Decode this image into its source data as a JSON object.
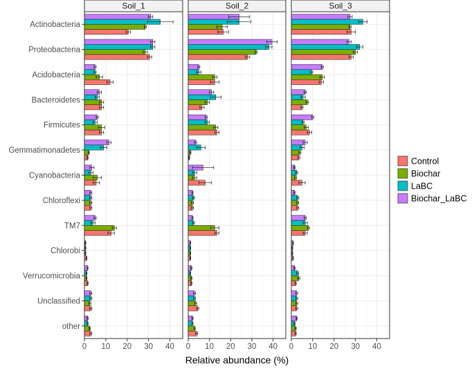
{
  "chart_data": {
    "type": "bar",
    "orientation": "horizontal",
    "xlabel": "Relative abundance (%)",
    "xlim": [
      0,
      46
    ],
    "xticks": [
      0,
      10,
      20,
      30,
      40
    ],
    "tick_labels": [
      "0",
      "10",
      "20",
      "30",
      "40"
    ],
    "panels": [
      "Soil_1",
      "Soil_2",
      "Soil_3"
    ],
    "categories": [
      "Actinobacteria",
      "Proteobacteria",
      "Acidobacteria",
      "Bacteroidetes",
      "Firmicutes",
      "Gemmatimonadetes",
      "Cyanobacteria",
      "Chloroflexi",
      "TM7",
      "Chlorobi",
      "Verrucomicrobia",
      "Unclassified",
      "other"
    ],
    "legend": {
      "placement": "right",
      "entries": [
        "Control",
        "Biochar",
        "LaBC",
        "Biochar_LaBC"
      ],
      "colors": [
        "#F8766D",
        "#7CAE00",
        "#00BFC4",
        "#C77CFF"
      ]
    },
    "series": [
      {
        "name": "Control",
        "color": "#F8766D",
        "values": [
          [
            20.5,
            30.5,
            12.0,
            8.0,
            8.0,
            1.5,
            5.5,
            3.0,
            12.5,
            1.0,
            1.5,
            3.0,
            3.0
          ],
          [
            16.5,
            28.0,
            12.5,
            6.5,
            13.5,
            0.5,
            8.0,
            2.0,
            13.5,
            1.0,
            1.5,
            4.5,
            4.0
          ],
          [
            28.0,
            28.0,
            14.0,
            5.0,
            8.5,
            3.5,
            5.0,
            3.0,
            6.5,
            0.8,
            2.0,
            2.5,
            2.0
          ]
        ],
        "errors": [
          [
            1.0,
            1.0,
            1.5,
            1.0,
            1.0,
            0.3,
            1.5,
            0.5,
            1.5,
            0.2,
            0.3,
            0.5,
            0.5
          ],
          [
            2.5,
            1.0,
            2.0,
            1.0,
            1.0,
            0.2,
            3.0,
            0.5,
            1.0,
            0.2,
            0.3,
            0.5,
            0.5
          ],
          [
            2.0,
            1.0,
            1.0,
            0.5,
            1.0,
            0.5,
            1.5,
            0.5,
            1.0,
            0.2,
            0.3,
            0.5,
            0.3
          ]
        ]
      },
      {
        "name": "Biochar",
        "color": "#7CAE00",
        "values": [
          [
            28.5,
            28.5,
            7.0,
            8.0,
            8.0,
            2.0,
            6.0,
            3.0,
            14.0,
            0.5,
            1.0,
            2.5,
            2.5
          ],
          [
            16.0,
            32.0,
            12.5,
            9.0,
            13.0,
            1.0,
            3.0,
            2.0,
            12.5,
            1.0,
            1.5,
            3.5,
            3.0
          ],
          [
            27.5,
            30.0,
            14.5,
            7.5,
            7.0,
            4.0,
            2.0,
            3.0,
            8.0,
            0.5,
            3.5,
            2.5,
            2.0
          ]
        ],
        "errors": [
          [
            0.5,
            1.0,
            1.5,
            1.0,
            1.5,
            0.3,
            2.0,
            0.5,
            1.0,
            0.2,
            0.2,
            0.5,
            0.3
          ],
          [
            2.5,
            0.5,
            1.0,
            1.0,
            1.0,
            0.3,
            1.0,
            0.5,
            2.0,
            0.2,
            0.3,
            0.5,
            0.3
          ],
          [
            0.5,
            1.0,
            1.0,
            0.5,
            1.0,
            0.5,
            0.5,
            0.5,
            0.5,
            0.2,
            0.5,
            0.5,
            0.3
          ]
        ]
      },
      {
        "name": "LaBC",
        "color": "#00BFC4",
        "values": [
          [
            35.5,
            32.0,
            5.0,
            6.0,
            5.0,
            9.0,
            3.0,
            3.0,
            4.0,
            0.5,
            1.0,
            3.0,
            1.5
          ],
          [
            24.0,
            38.0,
            5.0,
            13.0,
            9.0,
            6.0,
            3.0,
            2.5,
            2.5,
            1.0,
            1.0,
            3.0,
            2.0
          ],
          [
            33.5,
            32.0,
            9.5,
            5.5,
            5.5,
            5.0,
            2.5,
            3.0,
            6.5,
            0.5,
            3.0,
            2.5,
            1.5
          ]
        ],
        "errors": [
          [
            6.0,
            1.0,
            0.5,
            1.0,
            1.0,
            1.5,
            1.0,
            0.5,
            1.0,
            0.2,
            0.2,
            0.5,
            0.3
          ],
          [
            5.5,
            1.5,
            1.0,
            2.5,
            1.0,
            2.0,
            1.0,
            0.5,
            0.5,
            0.2,
            0.2,
            0.5,
            0.3
          ],
          [
            2.0,
            1.5,
            0.5,
            1.0,
            0.5,
            1.0,
            0.5,
            0.5,
            1.0,
            0.2,
            0.5,
            0.5,
            0.3
          ]
        ]
      },
      {
        "name": "Biochar_LaBC",
        "color": "#C77CFF",
        "values": [
          [
            31.0,
            32.0,
            5.0,
            7.0,
            6.0,
            11.5,
            3.5,
            3.0,
            5.0,
            0.5,
            1.5,
            3.0,
            1.5
          ],
          [
            24.0,
            39.5,
            5.0,
            11.0,
            8.5,
            3.5,
            7.0,
            2.0,
            2.0,
            1.0,
            1.5,
            3.0,
            2.0
          ],
          [
            27.5,
            27.0,
            14.5,
            6.5,
            10.0,
            6.5,
            1.5,
            1.5,
            6.5,
            0.8,
            1.5,
            2.5,
            2.5
          ]
        ],
        "errors": [
          [
            1.0,
            1.0,
            0.5,
            1.0,
            0.5,
            1.0,
            1.0,
            0.5,
            0.5,
            0.2,
            0.2,
            0.5,
            0.3
          ],
          [
            5.0,
            2.5,
            0.5,
            1.0,
            0.5,
            0.5,
            5.0,
            0.3,
            0.3,
            0.2,
            0.3,
            0.5,
            0.3
          ],
          [
            1.0,
            1.0,
            0.5,
            0.5,
            0.5,
            1.0,
            0.3,
            0.3,
            0.5,
            0.2,
            0.3,
            0.5,
            0.3
          ]
        ]
      }
    ]
  }
}
